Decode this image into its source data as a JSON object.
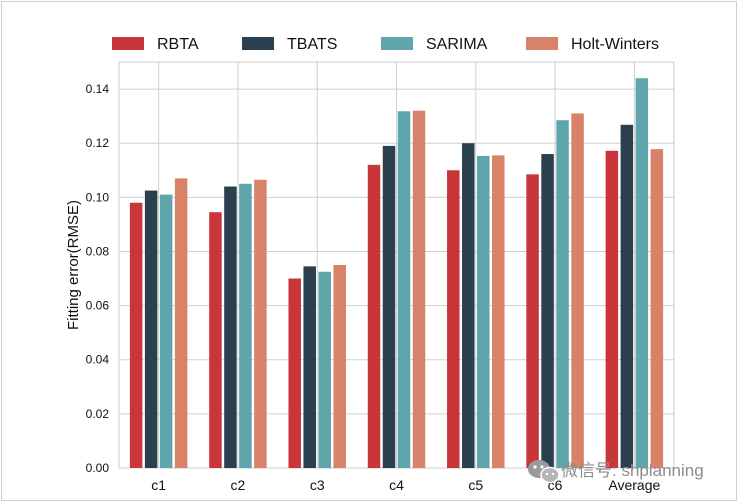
{
  "chart_data": {
    "type": "bar",
    "title": "",
    "xlabel": "",
    "ylabel": "Fitting error(RMSE)",
    "ylim": [
      0,
      0.15
    ],
    "yticks": [
      "0.00",
      "0.02",
      "0.04",
      "0.06",
      "0.08",
      "0.10",
      "0.12",
      "0.14"
    ],
    "grid": true,
    "legend_position": "top",
    "categories": [
      "c1",
      "c2",
      "c3",
      "c4",
      "c5",
      "c6",
      "Average"
    ],
    "series": [
      {
        "name": "RBTA",
        "color": "#c9363a",
        "values": [
          0.098,
          0.0945,
          0.07,
          0.112,
          0.11,
          0.1085,
          0.1172
        ]
      },
      {
        "name": "TBATS",
        "color": "#2b3f4e",
        "values": [
          0.1025,
          0.104,
          0.0745,
          0.119,
          0.12,
          0.116,
          0.1268
        ]
      },
      {
        "name": "SARIMA",
        "color": "#5fa6ac",
        "values": [
          0.101,
          0.105,
          0.0725,
          0.1318,
          0.1153,
          0.1285,
          0.144
        ]
      },
      {
        "name": "Holt-Winters",
        "color": "#d9826a",
        "values": [
          0.107,
          0.1065,
          0.075,
          0.132,
          0.1155,
          0.131,
          0.1178
        ]
      }
    ]
  },
  "watermark": "微信号: shplanning"
}
